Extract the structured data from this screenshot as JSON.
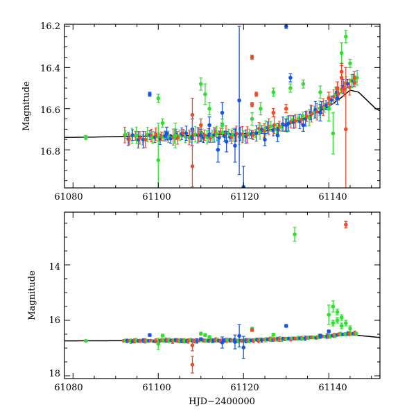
{
  "figure": {
    "xlabel": "HJD−2400000",
    "colors": {
      "blue": "#1a55e0",
      "green": "#33dd33",
      "red": "#f04a2a",
      "model": "#000000"
    }
  },
  "chart_data": [
    {
      "type": "scatter",
      "panel": "top",
      "ylabel": "Magnitude",
      "xlim": [
        61078,
        61152
      ],
      "ylim": [
        16.985,
        16.19
      ],
      "y_inverted": true,
      "x_ticks": [
        61080,
        61100,
        61120,
        61140
      ],
      "x_tick_labels": [
        "61080",
        "61100",
        "61120",
        "61140"
      ],
      "y_ticks": [
        16.2,
        16.4,
        16.6,
        16.8
      ],
      "y_tick_labels": [
        "16.2",
        "16.4",
        "16.6",
        "16.8"
      ],
      "model_curve": {
        "x": [
          61078,
          61085,
          61092,
          61100,
          61110,
          61120,
          61125,
          61130,
          61135,
          61140,
          61143,
          61145,
          61147,
          61149,
          61151,
          61152
        ],
        "y": [
          16.74,
          16.738,
          16.735,
          16.733,
          16.73,
          16.722,
          16.71,
          16.68,
          16.64,
          16.59,
          16.545,
          16.51,
          16.52,
          16.56,
          16.6,
          16.61
        ]
      },
      "series": [
        {
          "name": "blue",
          "color": "#1a55e0",
          "x": [
            61098,
            61102,
            61108,
            61110,
            61112,
            61114,
            61115,
            61116,
            61118,
            61119,
            61120,
            61125,
            61128,
            61130,
            61130,
            61131,
            61134,
            61138,
            61142
          ],
          "y": [
            16.53,
            16.72,
            16.7,
            16.73,
            16.68,
            16.8,
            16.62,
            16.76,
            16.78,
            16.56,
            16.98,
            16.75,
            16.73,
            16.2,
            16.68,
            16.45,
            16.68,
            16.62,
            16.55
          ],
          "err": [
            0.01,
            0.03,
            0.05,
            0.03,
            0.04,
            0.06,
            0.05,
            0.05,
            0.08,
            0.36,
            0.1,
            0.03,
            0.03,
            0.01,
            0.03,
            0.02,
            0.03,
            0.04,
            0.03
          ]
        },
        {
          "name": "green",
          "color": "#33dd33",
          "x": [
            61083,
            61100,
            61100,
            61101,
            61104,
            61110,
            61111,
            61112,
            61115,
            61122,
            61124,
            61127,
            61131,
            61134,
            61138,
            61140,
            61141,
            61143,
            61144,
            61145,
            61146
          ],
          "y": [
            16.74,
            16.55,
            16.85,
            16.67,
            16.73,
            16.48,
            16.53,
            16.6,
            16.68,
            16.65,
            16.6,
            16.52,
            16.5,
            16.48,
            16.52,
            16.6,
            16.72,
            16.33,
            16.25,
            16.38,
            16.46
          ],
          "err": [
            0.01,
            0.02,
            0.18,
            0.02,
            0.06,
            0.03,
            0.05,
            0.03,
            0.03,
            0.03,
            0.03,
            0.02,
            0.02,
            0.02,
            0.03,
            0.06,
            0.1,
            0.05,
            0.03,
            0.02,
            0.02
          ]
        },
        {
          "name": "red",
          "color": "#f04a2a",
          "x": [
            61108,
            61108,
            61110,
            61122,
            61122,
            61123,
            61127,
            61130,
            61140,
            61142,
            61143,
            61143,
            61144,
            61146
          ],
          "y": [
            16.63,
            16.88,
            16.68,
            16.35,
            16.58,
            16.53,
            16.62,
            16.6,
            16.55,
            16.5,
            16.42,
            16.45,
            16.7,
            16.45
          ],
          "err": [
            0.08,
            0.1,
            0.03,
            0.01,
            0.01,
            0.01,
            0.02,
            0.02,
            0.03,
            0.03,
            0.03,
            0.07,
            0.3,
            0.03
          ]
        }
      ],
      "dense_band": {
        "x_range": [
          61092,
          61147
        ],
        "baseline_x": [
          61092,
          61120,
          61124,
          61130,
          61136,
          61140,
          61143,
          61147
        ],
        "baseline_y": [
          16.74,
          16.725,
          16.71,
          16.68,
          16.63,
          16.57,
          16.5,
          16.46
        ],
        "colors": [
          "#f04a2a",
          "#33dd33",
          "#1a55e0"
        ],
        "scatter": 0.015,
        "error_halfwidth": 0.03
      }
    },
    {
      "type": "scatter",
      "panel": "bottom",
      "ylabel": "Magnitude",
      "xlabel": "HJD−2400000",
      "xlim": [
        61078,
        61152
      ],
      "ylim": [
        18.1,
        12.1
      ],
      "y_inverted": true,
      "x_ticks": [
        61080,
        61100,
        61120,
        61140
      ],
      "x_tick_labels": [
        "61080",
        "61100",
        "61120",
        "61140"
      ],
      "y_ticks": [
        14,
        16,
        18
      ],
      "y_tick_labels": [
        "14",
        "16",
        "18"
      ],
      "model_curve": {
        "x": [
          61078,
          61092,
          61110,
          61120,
          61130,
          61140,
          61145,
          61148,
          61152
        ],
        "y": [
          16.74,
          16.735,
          16.73,
          16.722,
          16.68,
          16.59,
          16.51,
          16.56,
          16.62
        ]
      },
      "series": [
        {
          "name": "blue",
          "color": "#1a55e0",
          "x": [
            61098,
            61110,
            61115,
            61118,
            61119,
            61120,
            61130,
            61138,
            61140
          ],
          "y": [
            16.53,
            16.68,
            16.8,
            16.78,
            16.56,
            16.98,
            16.2,
            16.55,
            16.4
          ],
          "err": [
            0.05,
            0.05,
            0.2,
            0.25,
            0.4,
            0.4,
            0.05,
            0.05,
            0.05
          ]
        },
        {
          "name": "green",
          "color": "#33dd33",
          "x": [
            61083,
            61100,
            61101,
            61110,
            61111,
            61112,
            61122,
            61127,
            61132,
            61140,
            61141,
            61141,
            61142,
            61142,
            61143,
            61143,
            61144,
            61145
          ],
          "y": [
            16.74,
            16.85,
            16.55,
            16.48,
            16.53,
            16.6,
            16.3,
            16.52,
            12.9,
            15.8,
            15.5,
            16.1,
            16.0,
            15.7,
            16.2,
            15.9,
            16.1,
            16.3
          ],
          "err": [
            0.03,
            0.2,
            0.05,
            0.05,
            0.05,
            0.05,
            0.05,
            0.05,
            0.25,
            0.35,
            0.2,
            0.1,
            0.1,
            0.1,
            0.1,
            0.1,
            0.1,
            0.1
          ]
        },
        {
          "name": "red",
          "color": "#f04a2a",
          "x": [
            61108,
            61108,
            61122,
            61144
          ],
          "y": [
            17.6,
            16.9,
            16.35,
            12.55
          ],
          "err": [
            0.3,
            0.2,
            0.05,
            0.12
          ]
        }
      ],
      "dense_band": {
        "x_range": [
          61092,
          61147
        ],
        "baseline_x": [
          61092,
          61120,
          61124,
          61130,
          61136,
          61140,
          61143,
          61147
        ],
        "baseline_y": [
          16.74,
          16.725,
          16.71,
          16.68,
          16.63,
          16.57,
          16.5,
          16.46
        ],
        "colors": [
          "#f04a2a",
          "#33dd33",
          "#1a55e0"
        ],
        "scatter": 0.02,
        "error_halfwidth": 0.06
      }
    }
  ]
}
